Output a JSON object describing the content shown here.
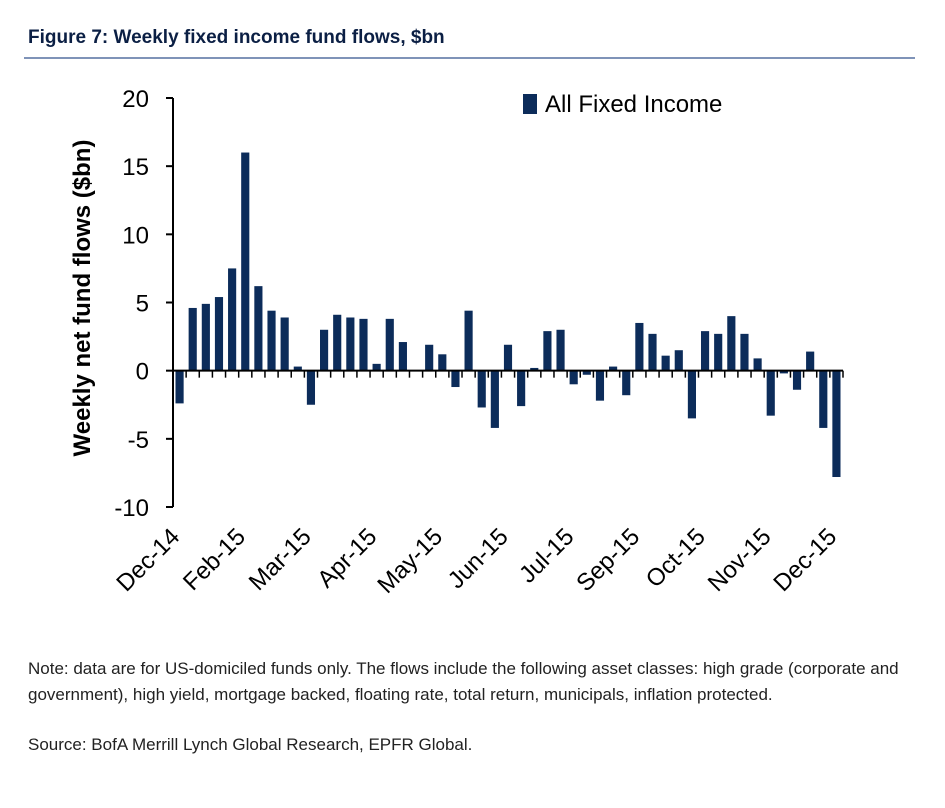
{
  "header": {
    "title": "Figure 7: Weekly fixed income fund flows, $bn"
  },
  "footer": {
    "note": "Note: data are for US-domiciled funds only. The flows include the following asset classes: high grade (corporate and government), high yield, mortgage backed, floating rate, total return, municipals, inflation protected.",
    "source": "Source: BofA Merrill Lynch Global Research, EPFR Global."
  },
  "colors": {
    "bar": "#0c2c5a",
    "title": "#0b1f44",
    "rule": "#7f93b8"
  },
  "chart_data": {
    "type": "bar",
    "ylabel": "Weekly net fund flows ($bn)",
    "xlabel": "",
    "ylim": [
      -10,
      20
    ],
    "yticks": [
      20,
      15,
      10,
      5,
      0,
      -5,
      -10
    ],
    "grid": false,
    "legend_position": "top-right",
    "x_tick_labels": [
      "Dec-14",
      "Feb-15",
      "Mar-15",
      "Apr-15",
      "May-15",
      "Jun-15",
      "Jul-15",
      "Sep-15",
      "Oct-15",
      "Nov-15",
      "Dec-15"
    ],
    "series": [
      {
        "name": "All Fixed Income",
        "values": [
          -2.4,
          4.6,
          4.9,
          5.4,
          7.5,
          16.0,
          6.2,
          4.4,
          3.9,
          0.3,
          -2.5,
          3.0,
          4.1,
          3.9,
          3.8,
          0.5,
          3.8,
          2.1,
          0.0,
          1.9,
          1.2,
          -1.2,
          4.4,
          -2.7,
          -4.2,
          1.9,
          -2.6,
          0.2,
          2.9,
          3.0,
          -1.0,
          -0.3,
          -2.2,
          0.3,
          -1.8,
          3.5,
          2.7,
          1.1,
          1.5,
          -3.5,
          2.9,
          2.7,
          4.0,
          2.7,
          0.9,
          -3.3,
          -0.2,
          -1.4,
          1.4,
          -4.2,
          -7.8
        ]
      }
    ]
  }
}
